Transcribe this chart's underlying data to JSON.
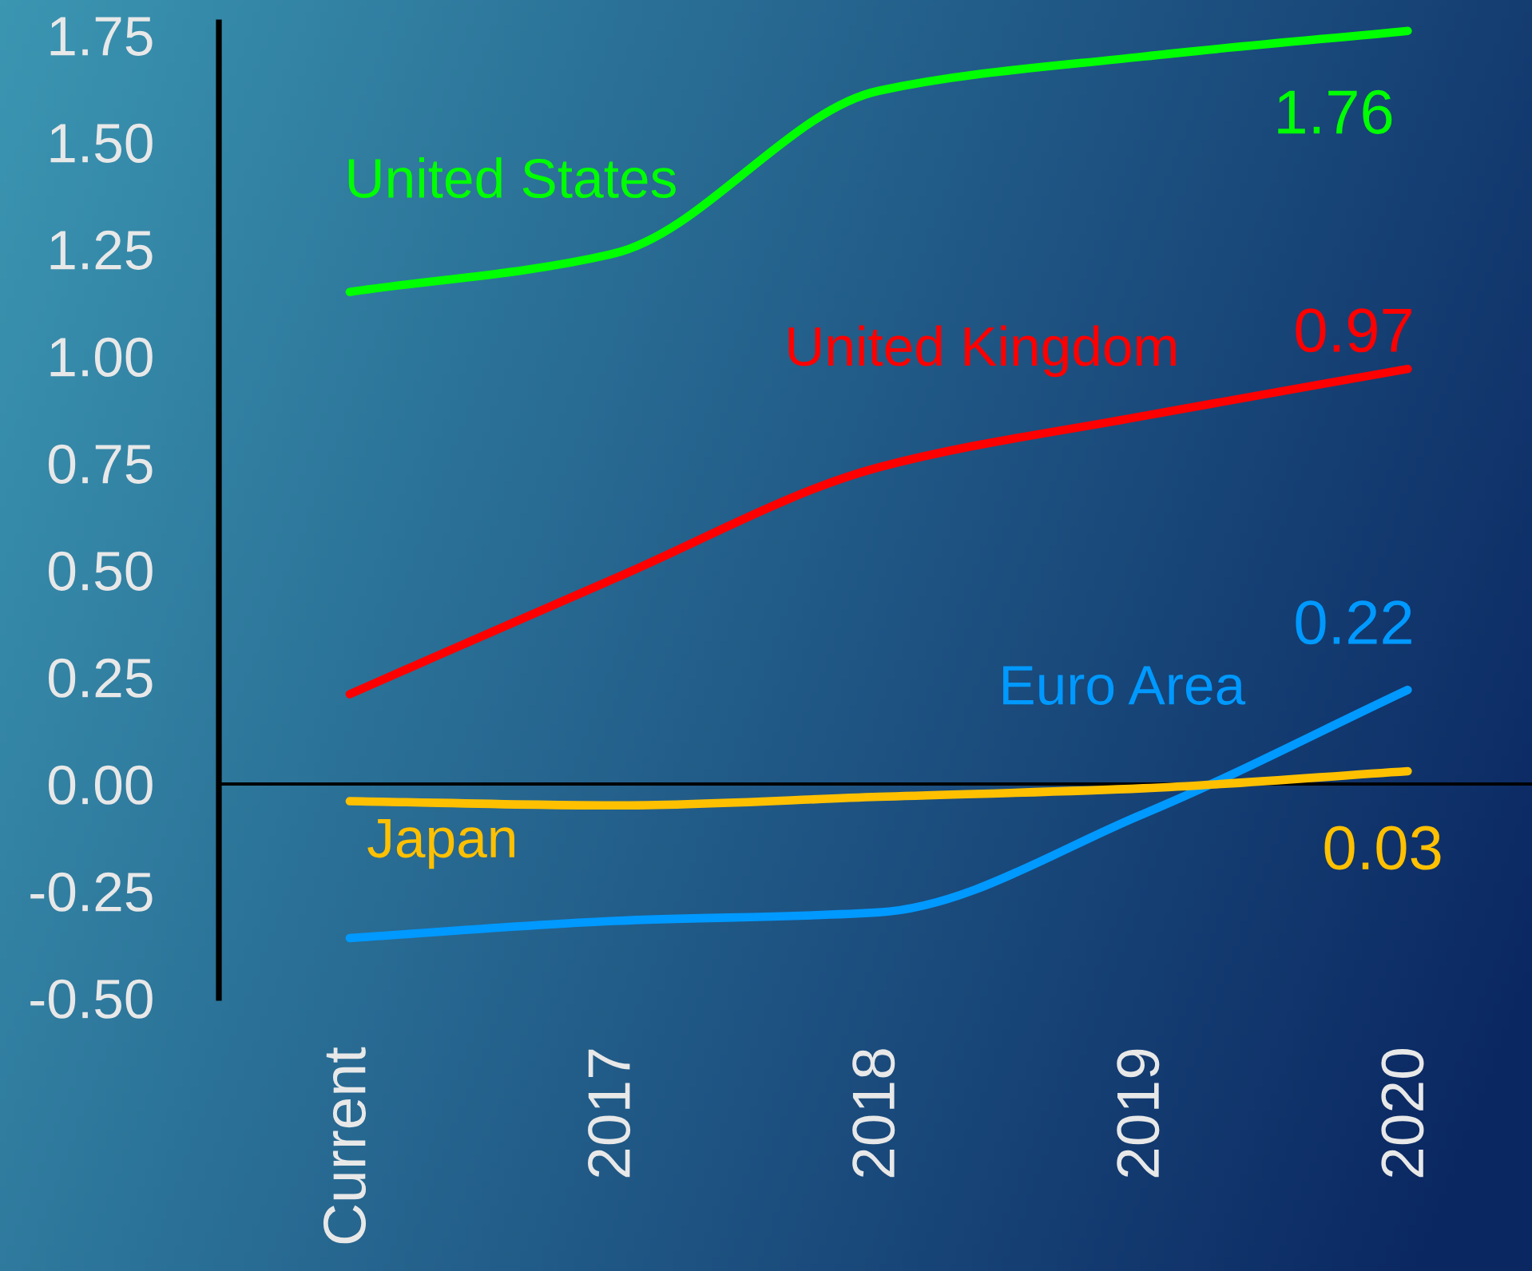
{
  "chart_data": {
    "type": "line",
    "categories": [
      "Current",
      "2017",
      "2018",
      "2019",
      "2020"
    ],
    "series": [
      {
        "name": "United States",
        "color": "#00ff00",
        "values": [
          1.15,
          1.24,
          1.62,
          1.7,
          1.76
        ],
        "value_labels": [
          null,
          null,
          null,
          null,
          "1.76"
        ]
      },
      {
        "name": "United Kingdom",
        "color": "#ff0000",
        "values": [
          0.21,
          0.48,
          0.74,
          0.86,
          0.97
        ],
        "value_labels": [
          null,
          null,
          null,
          null,
          "0.97"
        ]
      },
      {
        "name": "Euro Area",
        "color": "#0099ff",
        "values": [
          -0.36,
          -0.32,
          -0.3,
          -0.07,
          0.22
        ],
        "value_labels": [
          null,
          null,
          null,
          null,
          "0.22"
        ]
      },
      {
        "name": "Japan",
        "color": "#ffc000",
        "values": [
          -0.04,
          -0.05,
          -0.03,
          -0.01,
          0.03
        ],
        "value_labels": [
          null,
          null,
          null,
          null,
          "0.03"
        ]
      }
    ],
    "ylim": [
      -0.5,
      1.78
    ],
    "yticks": [
      {
        "value": -0.5,
        "label": "-0.50"
      },
      {
        "value": -0.25,
        "label": "-0.25"
      },
      {
        "value": 0,
        "label": "0.00"
      },
      {
        "value": 0.25,
        "label": "0.25"
      },
      {
        "value": 0.5,
        "label": "0.50"
      },
      {
        "value": 0.75,
        "label": "0.75"
      },
      {
        "value": 1.0,
        "label": "1.00"
      },
      {
        "value": 1.25,
        "label": "1.25"
      },
      {
        "value": 1.5,
        "label": "1.50"
      },
      {
        "value": 1.75,
        "label": "1.75"
      }
    ],
    "ref_lines": [
      {
        "axis": "y",
        "value": 0,
        "color": "#000000"
      }
    ],
    "line_style": "solid",
    "marker": "none"
  }
}
